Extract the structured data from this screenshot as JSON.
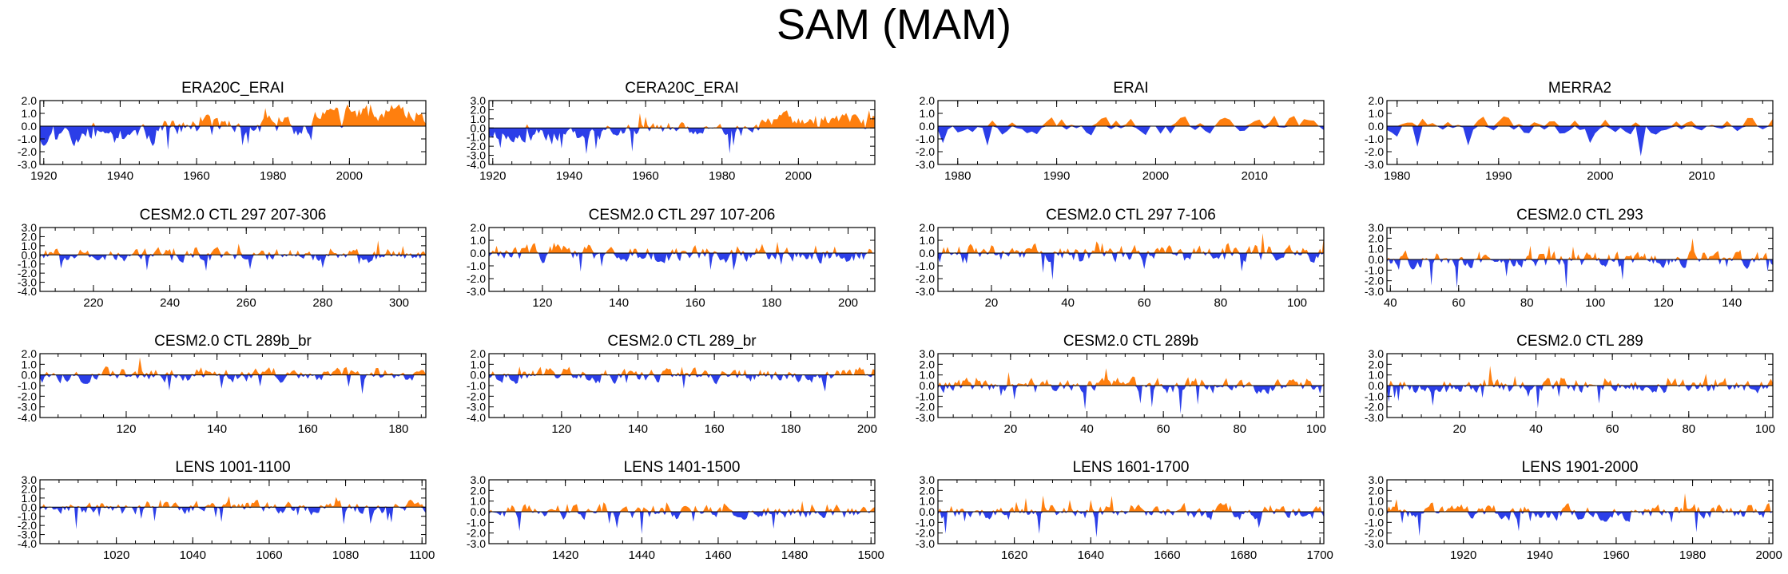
{
  "title": "SAM (MAM)",
  "colors": {
    "positive": "#ff7f0e",
    "negative": "#2b3ee8",
    "axis": "#000000"
  },
  "chart_data": [
    {
      "type": "area",
      "title": "ERA20C_ERAI",
      "x_range": [
        1919,
        2020
      ],
      "ylim": [
        -3,
        2
      ],
      "yticks": [
        "2.0",
        "1.0",
        "0.0",
        "-1.0",
        "-2.0",
        "-3.0"
      ],
      "xticks": [
        1920,
        1940,
        1960,
        1980,
        2000
      ],
      "seed": 11,
      "ptrend": 0.25,
      "ntrend": -0.25
    },
    {
      "type": "area",
      "title": "CERA20C_ERAI",
      "x_range": [
        1919,
        2020
      ],
      "ylim": [
        -4,
        3
      ],
      "yticks": [
        "3.0",
        "2.0",
        "1.0",
        "0.0",
        "-1.0",
        "-2.0",
        "-3.0",
        "-4.0"
      ],
      "xticks": [
        1920,
        1940,
        1960,
        1980,
        2000
      ],
      "seed": 23,
      "ptrend": 0.25,
      "ntrend": -0.25
    },
    {
      "type": "area",
      "title": "ERAI",
      "x_range": [
        1978,
        2017
      ],
      "ylim": [
        -3,
        2
      ],
      "yticks": [
        "2.0",
        "1.0",
        "0.0",
        "-1.0",
        "-2.0",
        "-3.0"
      ],
      "xticks": [
        1980,
        1990,
        2000,
        2010
      ],
      "seed": 37,
      "ptrend": 0.05,
      "ntrend": 0
    },
    {
      "type": "area",
      "title": "MERRA2",
      "x_range": [
        1979,
        2017
      ],
      "ylim": [
        -3,
        2
      ],
      "yticks": [
        "2.0",
        "1.0",
        "0.0",
        "-1.0",
        "-2.0",
        "-3.0"
      ],
      "xticks": [
        1980,
        1990,
        2000,
        2010
      ],
      "seed": 41,
      "ptrend": 0.05,
      "ntrend": 0
    },
    {
      "type": "area",
      "title": "CESM2.0 CTL 297 207-306",
      "x_range": [
        206,
        307
      ],
      "ylim": [
        -4,
        3
      ],
      "yticks": [
        "3.0",
        "2.0",
        "1.0",
        "0.0",
        "-1.0",
        "-2.0",
        "-3.0",
        "-4.0"
      ],
      "xticks": [
        220,
        240,
        260,
        280,
        300
      ],
      "seed": 53,
      "ptrend": 0,
      "ntrend": 0
    },
    {
      "type": "area",
      "title": "CESM2.0 CTL 297 107-206",
      "x_range": [
        106,
        207
      ],
      "ylim": [
        -3,
        2
      ],
      "yticks": [
        "2.0",
        "1.0",
        "0.0",
        "-1.0",
        "-2.0",
        "-3.0"
      ],
      "xticks": [
        120,
        140,
        160,
        180,
        200
      ],
      "seed": 61,
      "ptrend": 0,
      "ntrend": 0
    },
    {
      "type": "area",
      "title": "CESM2.0 CTL 297 7-106",
      "x_range": [
        6,
        107
      ],
      "ylim": [
        -3,
        2
      ],
      "yticks": [
        "2.0",
        "1.0",
        "0.0",
        "-1.0",
        "-2.0",
        "-3.0"
      ],
      "xticks": [
        20,
        40,
        60,
        80,
        100
      ],
      "seed": 73,
      "ptrend": 0,
      "ntrend": 0
    },
    {
      "type": "area",
      "title": "CESM2.0 CTL 293",
      "x_range": [
        39,
        152
      ],
      "ylim": [
        -3,
        3
      ],
      "yticks": [
        "3.0",
        "2.0",
        "1.0",
        "0.0",
        "-1.0",
        "-2.0",
        "-3.0"
      ],
      "xticks": [
        40,
        60,
        80,
        100,
        120,
        140
      ],
      "seed": 83,
      "ptrend": 0,
      "ntrend": 0
    },
    {
      "type": "area",
      "title": "CESM2.0 CTL 289b_br",
      "x_range": [
        101,
        186
      ],
      "ylim": [
        -4,
        2
      ],
      "yticks": [
        "2.0",
        "1.0",
        "0.0",
        "-1.0",
        "-2.0",
        "-3.0",
        "-4.0"
      ],
      "xticks": [
        120,
        140,
        160,
        180
      ],
      "seed": 97,
      "ptrend": 0,
      "ntrend": 0
    },
    {
      "type": "area",
      "title": "CESM2.0 CTL 289_br",
      "x_range": [
        101,
        202
      ],
      "ylim": [
        -4,
        2
      ],
      "yticks": [
        "2.0",
        "1.0",
        "0.0",
        "-1.0",
        "-2.0",
        "-3.0",
        "-4.0"
      ],
      "xticks": [
        120,
        140,
        160,
        180,
        200
      ],
      "seed": 101,
      "ptrend": 0,
      "ntrend": 0
    },
    {
      "type": "area",
      "title": "CESM2.0 CTL 289b",
      "x_range": [
        1,
        102
      ],
      "ylim": [
        -3,
        3
      ],
      "yticks": [
        "3.0",
        "2.0",
        "1.0",
        "0.0",
        "-1.0",
        "-2.0",
        "-3.0"
      ],
      "xticks": [
        20,
        40,
        60,
        80,
        100
      ],
      "seed": 113,
      "ptrend": 0,
      "ntrend": 0
    },
    {
      "type": "area",
      "title": "CESM2.0 CTL 289",
      "x_range": [
        1,
        102
      ],
      "ylim": [
        -3,
        3
      ],
      "yticks": [
        "3.0",
        "2.0",
        "1.0",
        "0.0",
        "-1.0",
        "-2.0",
        "-3.0"
      ],
      "xticks": [
        20,
        40,
        60,
        80,
        100
      ],
      "seed": 127,
      "ptrend": 0,
      "ntrend": 0
    },
    {
      "type": "area",
      "title": "LENS 1001-1100",
      "x_range": [
        1000,
        1101
      ],
      "ylim": [
        -4,
        3
      ],
      "yticks": [
        "3.0",
        "2.0",
        "1.0",
        "0.0",
        "-1.0",
        "-2.0",
        "-3.0",
        "-4.0"
      ],
      "xticks": [
        1020,
        1040,
        1060,
        1080,
        1100
      ],
      "seed": 131,
      "ptrend": 0,
      "ntrend": 0
    },
    {
      "type": "area",
      "title": "LENS 1401-1500",
      "x_range": [
        1400,
        1501
      ],
      "ylim": [
        -3,
        3
      ],
      "yticks": [
        "3.0",
        "2.0",
        "1.0",
        "0.0",
        "-1.0",
        "-2.0",
        "-3.0"
      ],
      "xticks": [
        1420,
        1440,
        1460,
        1480,
        1500
      ],
      "seed": 137,
      "ptrend": 0,
      "ntrend": 0
    },
    {
      "type": "area",
      "title": "LENS 1601-1700",
      "x_range": [
        1600,
        1701
      ],
      "ylim": [
        -3,
        3
      ],
      "yticks": [
        "3.0",
        "2.0",
        "1.0",
        "0.0",
        "-1.0",
        "-2.0",
        "-3.0"
      ],
      "xticks": [
        1620,
        1640,
        1660,
        1680,
        1700
      ],
      "seed": 149,
      "ptrend": 0,
      "ntrend": 0
    },
    {
      "type": "area",
      "title": "LENS 1901-2000",
      "x_range": [
        1900,
        2001
      ],
      "ylim": [
        -3,
        3
      ],
      "yticks": [
        "3.0",
        "2.0",
        "1.0",
        "0.0",
        "-1.0",
        "-2.0",
        "-3.0"
      ],
      "xticks": [
        1920,
        1940,
        1960,
        1980,
        2000
      ],
      "seed": 157,
      "ptrend": 0,
      "ntrend": 0
    }
  ]
}
